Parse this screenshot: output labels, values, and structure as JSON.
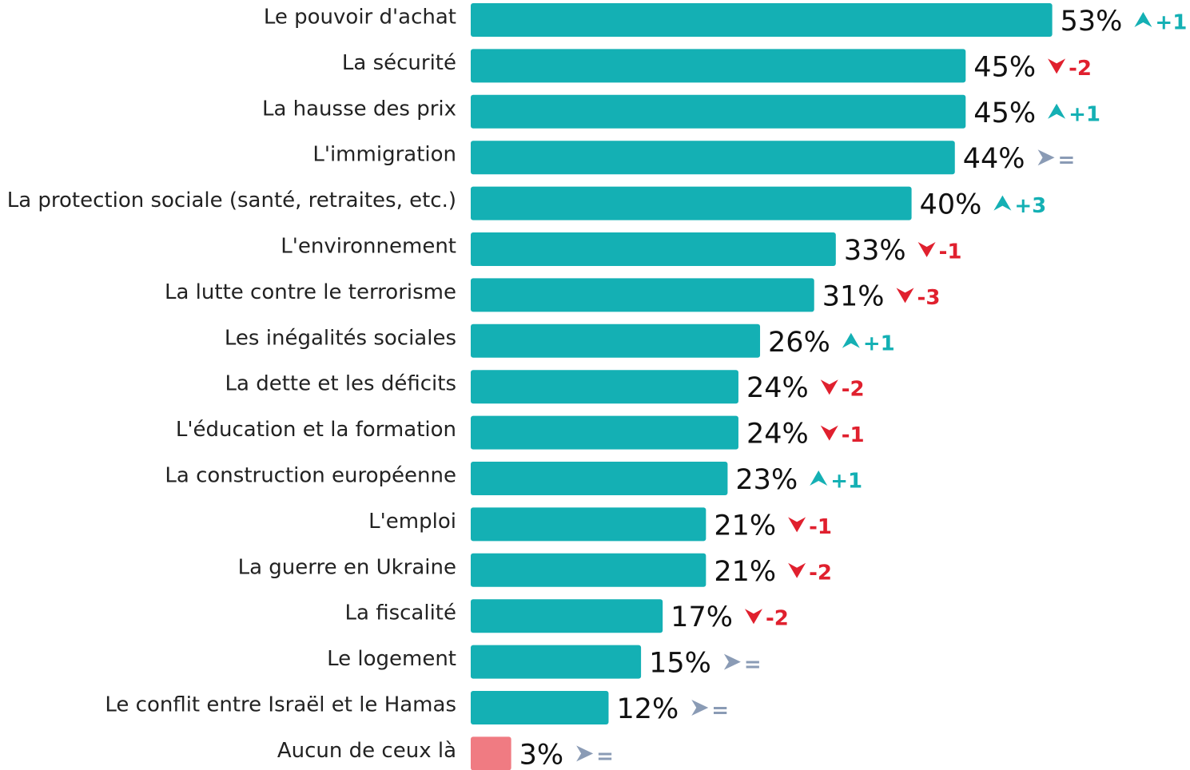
{
  "chart_data": {
    "type": "hbar",
    "categories": [
      "Le pouvoir d'achat",
      "La sécurité",
      "La hausse des prix",
      "L'immigration",
      "La protection sociale (santé, retraites, etc.)",
      "L'environnement",
      "La lutte contre le terrorisme",
      "Les inégalités sociales",
      "La dette et les déficits",
      "L'éducation et la formation",
      "La construction européenne",
      "L'emploi",
      "La guerre en Ukraine",
      "La fiscalité",
      "Le logement",
      "Le conflit entre Israël et le Hamas",
      "Aucun de ceux là"
    ],
    "values": [
      53,
      45,
      45,
      44,
      40,
      33,
      31,
      26,
      24,
      24,
      23,
      21,
      21,
      17,
      15,
      12,
      3
    ],
    "value_labels": [
      "53%",
      "45%",
      "45%",
      "44%",
      "40%",
      "33%",
      "31%",
      "26%",
      "24%",
      "24%",
      "23%",
      "21%",
      "21%",
      "17%",
      "15%",
      "12%",
      "3%"
    ],
    "colors": [
      "#14b0b4",
      "#14b0b4",
      "#14b0b4",
      "#14b0b4",
      "#14b0b4",
      "#14b0b4",
      "#14b0b4",
      "#14b0b4",
      "#14b0b4",
      "#14b0b4",
      "#14b0b4",
      "#14b0b4",
      "#14b0b4",
      "#14b0b4",
      "#14b0b4",
      "#14b0b4",
      "#f07b82"
    ],
    "changes": [
      1,
      -2,
      1,
      0,
      3,
      -1,
      -3,
      1,
      -2,
      -1,
      1,
      -1,
      -2,
      -2,
      0,
      0,
      0
    ],
    "change_labels": [
      "+1",
      "-2",
      "+1",
      "=",
      "+3",
      "-1",
      "-3",
      "+1",
      "-2",
      "-1",
      "+1",
      "-1",
      "-2",
      "-2",
      "=",
      "=",
      "="
    ],
    "change_colors": {
      "up": "#14b0b4",
      "down": "#e0202e",
      "same": "#8a9bb5"
    }
  }
}
